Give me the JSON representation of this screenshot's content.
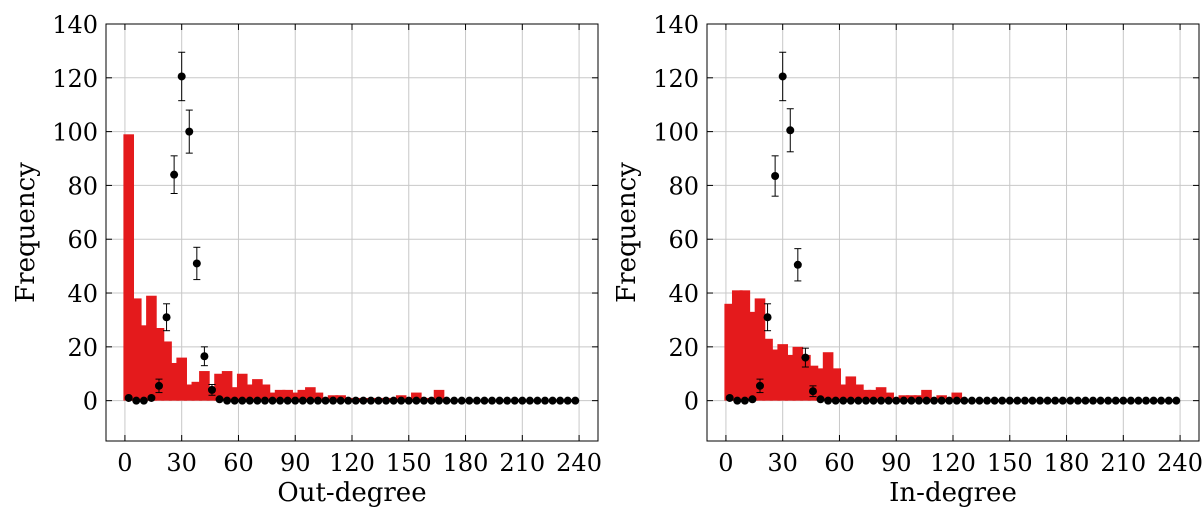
{
  "chart_data": [
    {
      "type": "bar",
      "xlabel": "Out-degree",
      "ylabel": "Frequency",
      "xlim": [
        -10,
        250
      ],
      "ylim": [
        -15,
        140
      ],
      "xticks": [
        0,
        30,
        60,
        90,
        120,
        150,
        180,
        210,
        240
      ],
      "yticks": [
        0,
        20,
        40,
        60,
        80,
        100,
        120,
        140
      ],
      "grid": true,
      "bar_color": "#e41a1c",
      "marker_color": "#000000",
      "bar_width": 2.8,
      "series": [
        {
          "kind": "bars",
          "x": [
            2,
            6,
            10,
            14,
            18,
            22,
            26,
            30,
            34,
            38,
            42,
            46,
            50,
            54,
            58,
            62,
            66,
            70,
            74,
            78,
            82,
            86,
            90,
            94,
            98,
            102,
            106,
            110,
            114,
            118,
            122,
            126,
            130,
            134,
            138,
            142,
            146,
            150,
            154,
            158,
            162,
            166
          ],
          "values": [
            99,
            38,
            28,
            39,
            27,
            22,
            14,
            16,
            6,
            7,
            11,
            5,
            10,
            11,
            5,
            10,
            6,
            8,
            6,
            3,
            4,
            4,
            3,
            4,
            5,
            3,
            1,
            2,
            2,
            1,
            1,
            0,
            1,
            1,
            1,
            1,
            2,
            1,
            3,
            0,
            1,
            4
          ]
        },
        {
          "kind": "points_with_error",
          "x": [
            2,
            6,
            10,
            14,
            18,
            22,
            26,
            30,
            34,
            38,
            42,
            46,
            50,
            54,
            58,
            62,
            66,
            70,
            74,
            78,
            82,
            86,
            90,
            94,
            98,
            102,
            106,
            110,
            114,
            118,
            122,
            126,
            130,
            134,
            138,
            142,
            146,
            150,
            154,
            158,
            162,
            166,
            170,
            174,
            178,
            182,
            186,
            190,
            194,
            198,
            202,
            206,
            210,
            214,
            218,
            222,
            226,
            230,
            234,
            238
          ],
          "values": [
            1,
            0,
            0,
            1,
            5.5,
            31,
            84,
            120.5,
            100,
            51,
            16.5,
            4,
            0.5,
            0,
            0,
            0,
            0,
            0,
            0,
            0,
            0,
            0,
            0,
            0,
            0,
            0,
            0,
            0,
            0,
            0,
            0,
            0,
            0,
            0,
            0,
            0,
            0,
            0,
            0,
            0,
            0,
            0,
            0,
            0,
            0,
            0,
            0,
            0,
            0,
            0,
            0,
            0,
            0,
            0,
            0,
            0,
            0,
            0,
            0,
            0
          ],
          "errors": [
            0,
            0,
            0,
            0,
            2.5,
            5,
            7,
            9,
            8,
            6,
            3.5,
            2,
            0,
            0,
            0,
            0,
            0,
            0,
            0,
            0,
            0,
            0,
            0,
            0,
            0,
            0,
            0,
            0,
            0,
            0,
            0,
            0,
            0,
            0,
            0,
            0,
            0,
            0,
            0,
            0,
            0,
            0,
            0,
            0,
            0,
            0,
            0,
            0,
            0,
            0,
            0,
            0,
            0,
            0,
            0,
            0,
            0,
            0,
            0,
            0
          ]
        }
      ]
    },
    {
      "type": "bar",
      "xlabel": "In-degree",
      "ylabel": "Frequency",
      "xlim": [
        -10,
        250
      ],
      "ylim": [
        -15,
        140
      ],
      "xticks": [
        0,
        30,
        60,
        90,
        120,
        150,
        180,
        210,
        240
      ],
      "yticks": [
        0,
        20,
        40,
        60,
        80,
        100,
        120,
        140
      ],
      "grid": true,
      "bar_color": "#e41a1c",
      "marker_color": "#000000",
      "bar_width": 2.8,
      "series": [
        {
          "kind": "bars",
          "x": [
            2,
            6,
            10,
            14,
            18,
            22,
            26,
            30,
            34,
            38,
            42,
            46,
            50,
            54,
            58,
            62,
            66,
            70,
            74,
            78,
            82,
            86,
            90,
            94,
            98,
            102,
            106,
            110,
            114,
            118,
            122
          ],
          "values": [
            36,
            41,
            41,
            33,
            38,
            23,
            19,
            21,
            17,
            20,
            17,
            13,
            12,
            18,
            12,
            6,
            9,
            6,
            4,
            4,
            5,
            3,
            1,
            2,
            2,
            2,
            4,
            1,
            2,
            1,
            3
          ]
        },
        {
          "kind": "points_with_error",
          "x": [
            2,
            6,
            10,
            14,
            18,
            22,
            26,
            30,
            34,
            38,
            42,
            46,
            50,
            54,
            58,
            62,
            66,
            70,
            74,
            78,
            82,
            86,
            90,
            94,
            98,
            102,
            106,
            110,
            114,
            118,
            122,
            126,
            130,
            134,
            138,
            142,
            146,
            150,
            154,
            158,
            162,
            166,
            170,
            174,
            178,
            182,
            186,
            190,
            194,
            198,
            202,
            206,
            210,
            214,
            218,
            222,
            226,
            230,
            234,
            238
          ],
          "values": [
            1,
            0,
            0,
            0.5,
            5.5,
            31,
            83.5,
            120.5,
            100.5,
            50.5,
            16,
            3.5,
            0.5,
            0,
            0,
            0,
            0,
            0,
            0,
            0,
            0,
            0,
            0,
            0,
            0,
            0,
            0,
            0,
            0,
            0,
            0,
            0,
            0,
            0,
            0,
            0,
            0,
            0,
            0,
            0,
            0,
            0,
            0,
            0,
            0,
            0,
            0,
            0,
            0,
            0,
            0,
            0,
            0,
            0,
            0,
            0,
            0,
            0,
            0,
            0
          ],
          "errors": [
            0,
            0,
            0,
            0,
            2.5,
            5,
            7.5,
            9,
            8,
            6,
            3.5,
            2,
            0,
            0,
            0,
            0,
            0,
            0,
            0,
            0,
            0,
            0,
            0,
            0,
            0,
            0,
            0,
            0,
            0,
            0,
            0,
            0,
            0,
            0,
            0,
            0,
            0,
            0,
            0,
            0,
            0,
            0,
            0,
            0,
            0,
            0,
            0,
            0,
            0,
            0,
            0,
            0,
            0,
            0,
            0,
            0,
            0,
            0,
            0,
            0
          ]
        }
      ]
    }
  ]
}
